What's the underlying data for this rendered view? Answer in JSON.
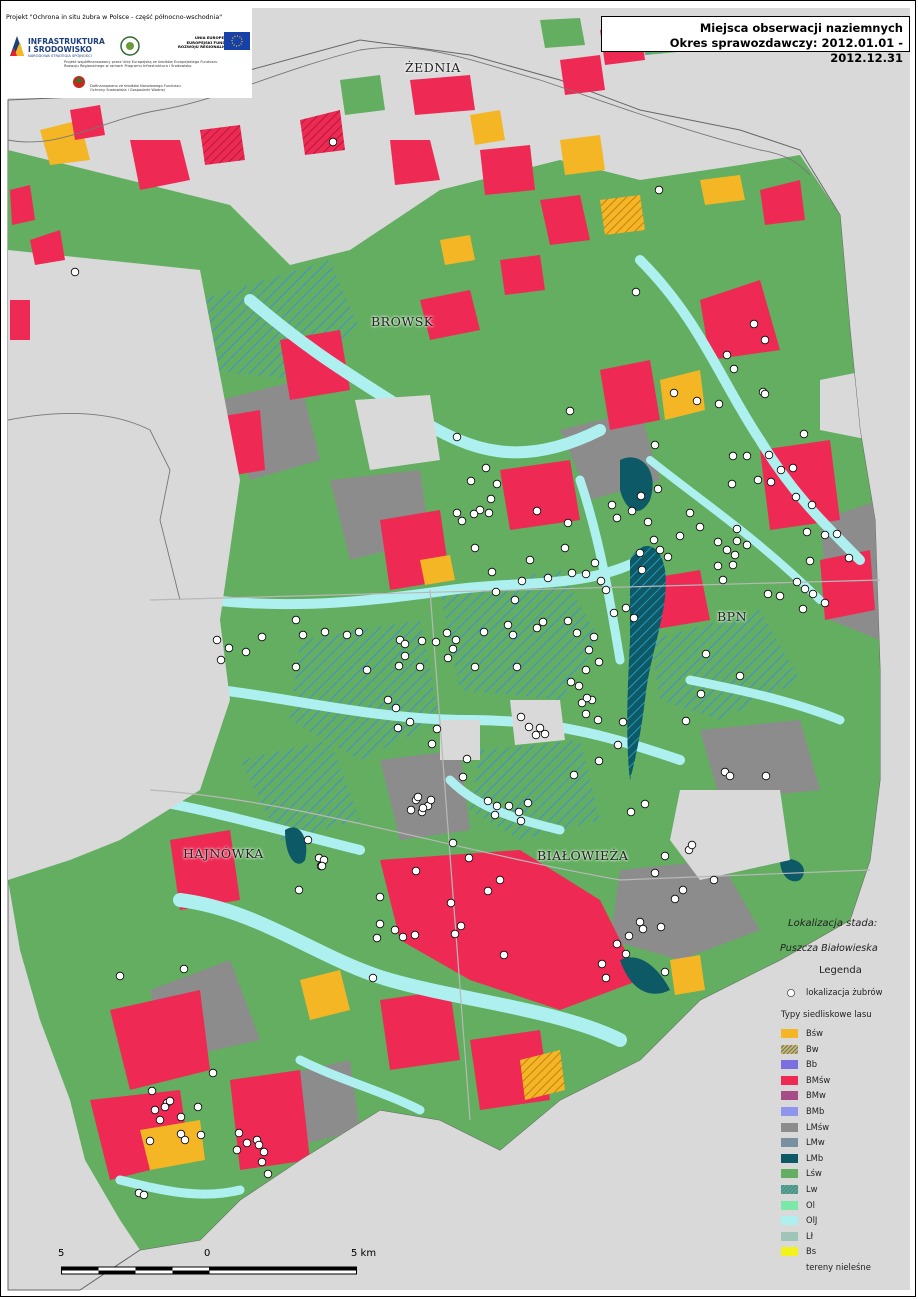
{
  "header": {
    "title_line1": "Miejsca obserwacji naziemnych",
    "title_line2": "Okres sprawozdawczy: 2012.01.01 - 2012.12.31"
  },
  "logo": {
    "project_text": "Projekt \"Ochrona in situ żubra w Polsce - część północno-wschodnia\"",
    "infra_line1": "INFRASTRUKTURA",
    "infra_line2": "I ŚRODOWISKO",
    "infra_sub": "NARODOWA STRATEGIA SPÓJNOŚCI",
    "ue_line1": "UNIA EUROPEJSKA",
    "ue_line2": "EUROPEJSKI FUNDUSZ",
    "ue_line3": "ROZWOJU REGIONALNEGO",
    "cofinance_text": "Projekt współfinansowany przez Unię Europejską ze środków Europejskiego Funduszu",
    "cofinance_text2": "Rozwoju Regionalnego w ramach Programu Infrastruktura i Środowisko",
    "nfos_text": "Dofinansowano ze środków Narodowego Funduszu",
    "nfos_text2": "Ochrony Środowiska i Gospodarki Wodnej"
  },
  "places": [
    "ŻEDNIA",
    "BROWSK",
    "BPN",
    "HAJNÓWKA",
    "BIAŁOWIEŻA"
  ],
  "legend": {
    "location_title": "Lokalizacja stada:",
    "location_name": "Puszcza Białowieska",
    "legend_title": "Legenda",
    "dot_label": "lokalizacja żubrów",
    "types_title": "Typy siedliskowe lasu",
    "items": [
      {
        "label": "Bśw",
        "color": "#f5b626",
        "pattern": "solid"
      },
      {
        "label": "Bw",
        "color": "#f5b626",
        "pattern": "hatch"
      },
      {
        "label": "Bb",
        "color": "#7b6fe0",
        "pattern": "solid"
      },
      {
        "label": "BMśw",
        "color": "#ee2a54",
        "pattern": "solid"
      },
      {
        "label": "BMw",
        "color": "#ee2a54",
        "pattern": "hatch"
      },
      {
        "label": "BMb",
        "color": "#8f95ee",
        "pattern": "solid"
      },
      {
        "label": "LMśw",
        "color": "#8c8c8c",
        "pattern": "solid"
      },
      {
        "label": "LMw",
        "color": "#7a8fa0",
        "pattern": "solid"
      },
      {
        "label": "LMb",
        "color": "#0d5a66",
        "pattern": "solid"
      },
      {
        "label": "Lśw",
        "color": "#63ae60",
        "pattern": "solid"
      },
      {
        "label": "Lw",
        "color": "#63ae60",
        "pattern": "hatch"
      },
      {
        "label": "Ol",
        "color": "#7be8a8",
        "pattern": "solid"
      },
      {
        "label": "OlJ",
        "color": "#aef0f0",
        "pattern": "solid"
      },
      {
        "label": "Lł",
        "color": "#9fc4b8",
        "pattern": "solid"
      },
      {
        "label": "Bs",
        "color": "#f2f21c",
        "pattern": "solid"
      },
      {
        "label": "tereny nieleśne",
        "color": "#d9d9d9",
        "pattern": "solid"
      }
    ]
  },
  "scale": {
    "left": "5",
    "mid": "0",
    "right": "5 km"
  },
  "colors": {
    "nonforest": "#d9d9d9",
    "forest": "#63ae60",
    "pine": "#f5b626",
    "mixed": "#ee2a54",
    "riparian": "#aef0f0",
    "grey": "#8c8c8c",
    "water": "#0d5a66"
  }
}
